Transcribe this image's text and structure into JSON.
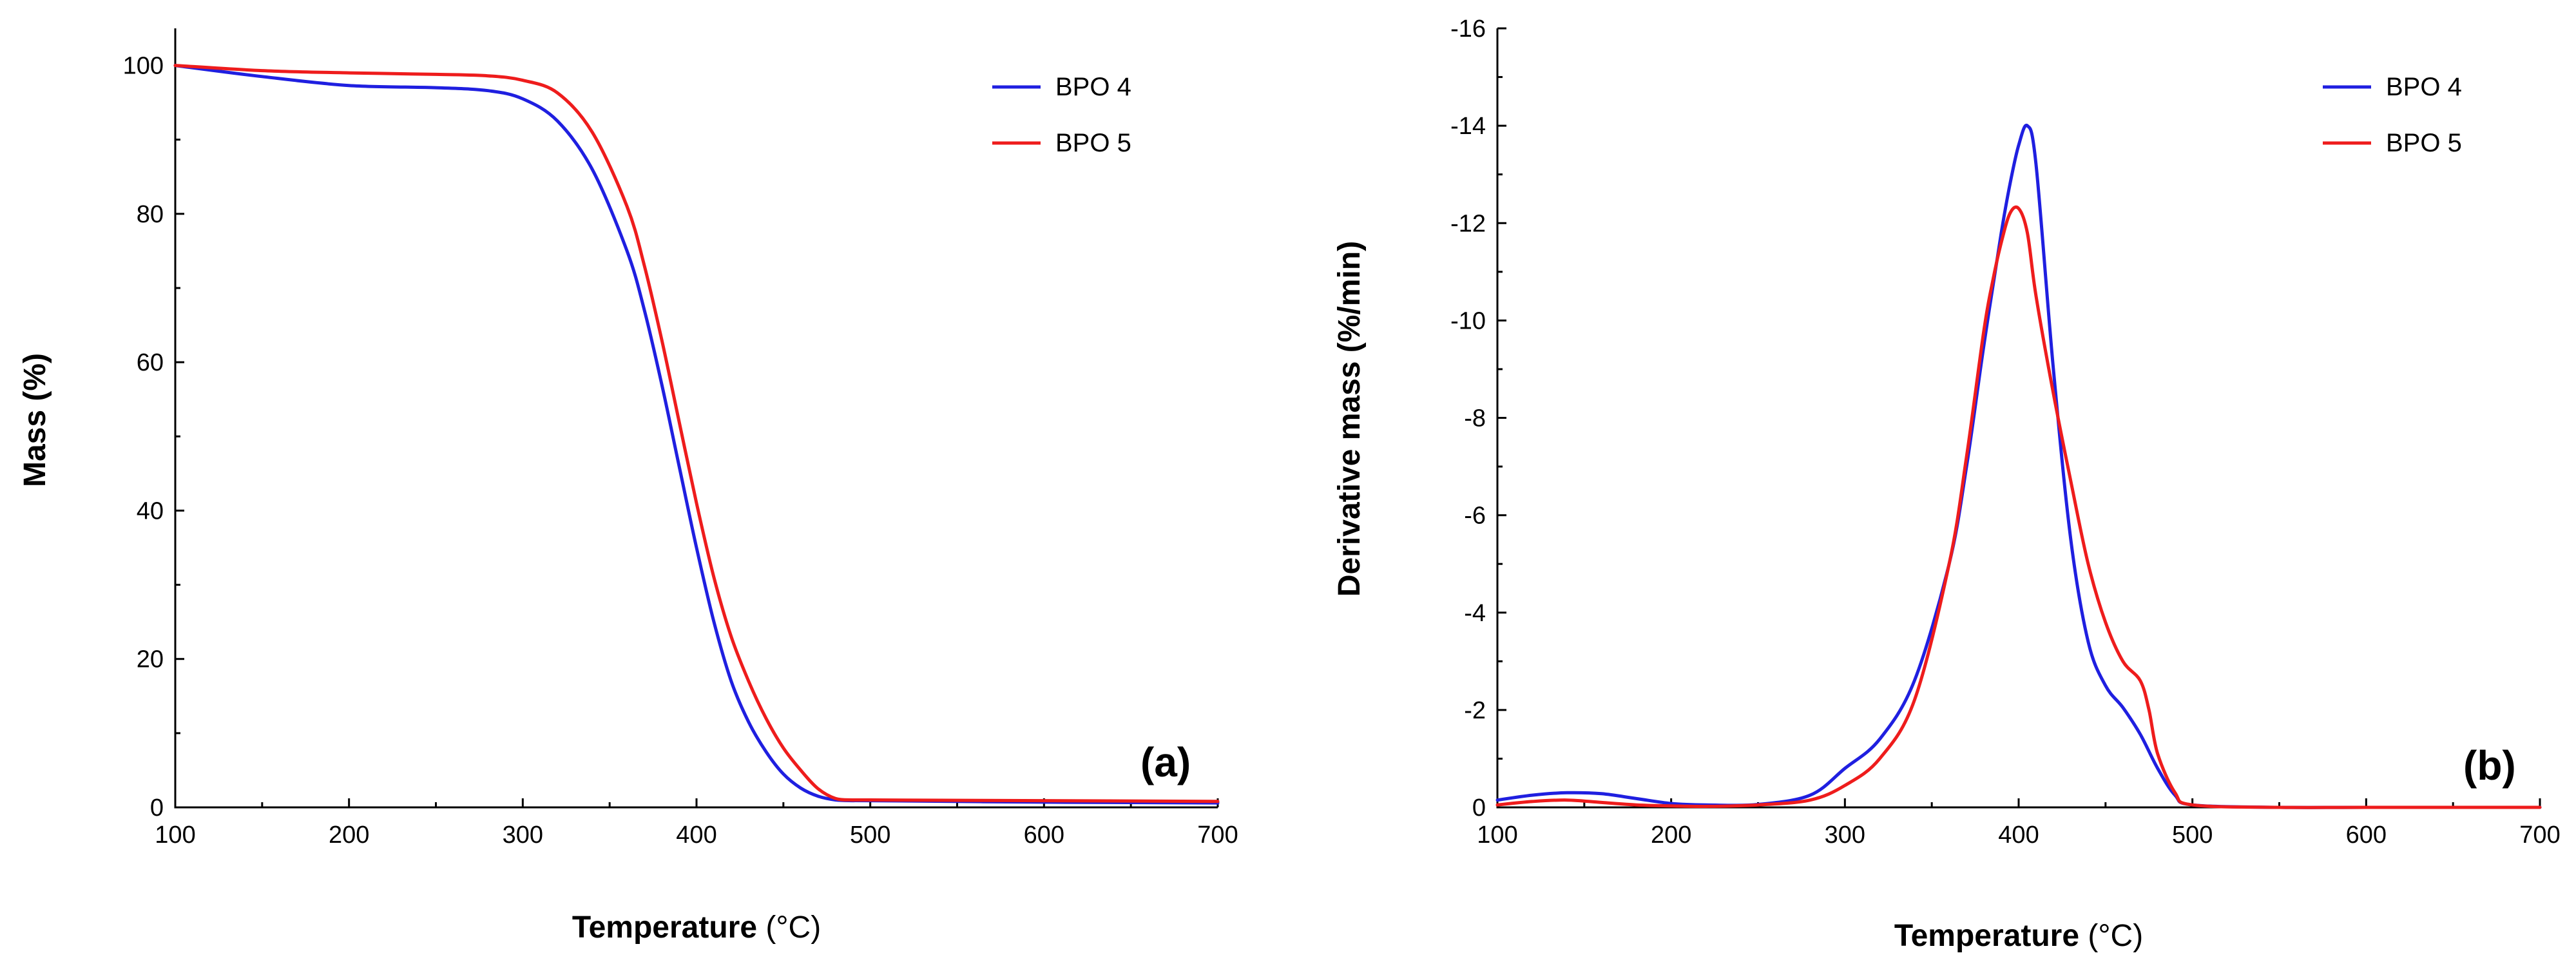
{
  "chart_data": [
    {
      "type": "line",
      "panel_label": "(a)",
      "xlabel": "Temperature",
      "xlabel_unit": "(°C)",
      "ylabel": "Mass (%)",
      "xlim": [
        100,
        700
      ],
      "ylim": [
        0,
        105
      ],
      "y_reversed": false,
      "x_ticks": [
        100,
        200,
        300,
        400,
        500,
        600,
        700
      ],
      "y_ticks": [
        0,
        20,
        40,
        60,
        80,
        100
      ],
      "legend_position": "top-right",
      "series": [
        {
          "name": "BPO 4",
          "color": "#1f1fe0",
          "x": [
            100,
            150,
            200,
            250,
            280,
            300,
            320,
            340,
            360,
            370,
            380,
            390,
            400,
            410,
            420,
            430,
            440,
            450,
            460,
            470,
            480,
            490,
            500,
            600,
            700
          ],
          "y": [
            100,
            98.5,
            97.3,
            97.0,
            96.6,
            95.5,
            92.5,
            86,
            75,
            67,
            57,
            46,
            35,
            25,
            17,
            11.5,
            7.5,
            4.5,
            2.6,
            1.5,
            1.0,
            0.9,
            0.9,
            0.7,
            0.6
          ]
        },
        {
          "name": "BPO 5",
          "color": "#ee1c1c",
          "x": [
            100,
            150,
            200,
            250,
            280,
            300,
            320,
            340,
            360,
            370,
            380,
            390,
            400,
            410,
            420,
            430,
            440,
            450,
            460,
            470,
            480,
            490,
            500,
            600,
            700
          ],
          "y": [
            100,
            99.3,
            99.0,
            98.8,
            98.6,
            98.0,
            96.3,
            91,
            81,
            73,
            63,
            52,
            41,
            31,
            23,
            17,
            12,
            8,
            5,
            2.5,
            1.2,
            1.0,
            1.0,
            0.9,
            0.8
          ]
        }
      ]
    },
    {
      "type": "line",
      "panel_label": "(b)",
      "xlabel": "Temperature",
      "xlabel_unit": "(°C)",
      "ylabel": "Derivative mass (%/min)",
      "xlim": [
        100,
        700
      ],
      "ylim": [
        0,
        -16
      ],
      "y_reversed": true,
      "x_ticks": [
        100,
        200,
        300,
        400,
        500,
        600,
        700
      ],
      "y_ticks": [
        0,
        -2,
        -4,
        -6,
        -8,
        -10,
        -12,
        -14,
        -16
      ],
      "legend_position": "top-right",
      "series": [
        {
          "name": "BPO 4",
          "color": "#1f1fe0",
          "x": [
            100,
            120,
            140,
            160,
            180,
            200,
            220,
            250,
            280,
            300,
            320,
            340,
            360,
            370,
            380,
            390,
            395,
            400,
            405,
            410,
            420,
            430,
            440,
            450,
            460,
            470,
            480,
            490,
            500,
            550,
            600,
            700
          ],
          "y": [
            -0.15,
            -0.25,
            -0.3,
            -0.28,
            -0.18,
            -0.08,
            -0.05,
            -0.06,
            -0.25,
            -0.8,
            -1.4,
            -2.6,
            -5.0,
            -7.0,
            -9.5,
            -11.8,
            -12.8,
            -13.6,
            -14.0,
            -13.2,
            -9.0,
            -5.5,
            -3.4,
            -2.5,
            -2.05,
            -1.5,
            -0.8,
            -0.25,
            -0.05,
            0,
            0,
            0
          ]
        },
        {
          "name": "BPO 5",
          "color": "#ee1c1c",
          "x": [
            100,
            120,
            140,
            160,
            180,
            200,
            220,
            250,
            280,
            300,
            320,
            340,
            360,
            370,
            380,
            385,
            390,
            395,
            400,
            405,
            410,
            420,
            430,
            440,
            450,
            460,
            470,
            475,
            480,
            490,
            500,
            550,
            600,
            700
          ],
          "y": [
            -0.05,
            -0.12,
            -0.15,
            -0.1,
            -0.05,
            -0.03,
            -0.02,
            -0.05,
            -0.15,
            -0.45,
            -1.0,
            -2.2,
            -5.0,
            -7.2,
            -9.8,
            -10.8,
            -11.6,
            -12.2,
            -12.3,
            -11.8,
            -10.5,
            -8.5,
            -6.7,
            -5.0,
            -3.8,
            -3.0,
            -2.6,
            -2.0,
            -1.1,
            -0.3,
            -0.05,
            0,
            0,
            0
          ]
        }
      ]
    }
  ]
}
